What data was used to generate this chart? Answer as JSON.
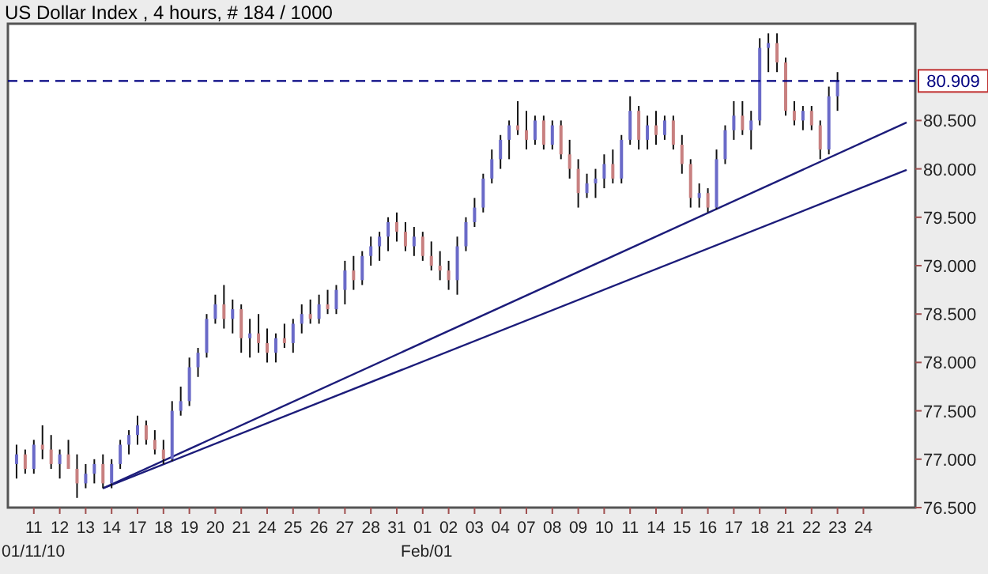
{
  "chart_data": {
    "type": "candlestick",
    "title": "US Dollar Index , 4 hours, # 184 / 1000",
    "categories": [
      null,
      null,
      "11",
      null,
      null,
      "12",
      null,
      null,
      "13",
      null,
      null,
      "14",
      null,
      null,
      "17",
      null,
      null,
      "18",
      null,
      null,
      "19",
      null,
      null,
      "20",
      null,
      null,
      "21",
      null,
      null,
      "24",
      null,
      null,
      "25",
      null,
      null,
      "26",
      null,
      null,
      "27",
      null,
      null,
      "28",
      null,
      null,
      "31",
      null,
      null,
      "01",
      null,
      null,
      "02",
      null,
      null,
      "03",
      null,
      null,
      "04",
      null,
      null,
      "07",
      null,
      null,
      "08",
      null,
      null,
      "09",
      null,
      null,
      "10",
      null,
      null,
      "11",
      null,
      null,
      "14",
      null,
      null,
      "15",
      null,
      null,
      "16",
      null,
      null,
      "17",
      null,
      null,
      "18",
      null,
      null,
      "21",
      null,
      null,
      "22",
      null,
      null,
      "23",
      null,
      null,
      "24",
      null,
      null,
      null,
      null,
      null
    ],
    "ohlc": [
      [
        76.95,
        77.15,
        76.8,
        77.05
      ],
      [
        77.05,
        77.1,
        76.85,
        76.9
      ],
      [
        76.9,
        77.2,
        76.85,
        77.15
      ],
      [
        77.15,
        77.35,
        77.0,
        77.1
      ],
      [
        77.1,
        77.25,
        76.9,
        76.95
      ],
      [
        76.95,
        77.1,
        76.8,
        77.05
      ],
      [
        77.05,
        77.2,
        76.9,
        76.9
      ],
      [
        76.9,
        77.05,
        76.6,
        76.75
      ],
      [
        76.75,
        76.95,
        76.7,
        76.85
      ],
      [
        76.85,
        77.0,
        76.75,
        76.95
      ],
      [
        76.95,
        77.05,
        76.7,
        76.75
      ],
      [
        76.75,
        77.0,
        76.7,
        76.95
      ],
      [
        76.95,
        77.2,
        76.9,
        77.15
      ],
      [
        77.15,
        77.3,
        77.05,
        77.25
      ],
      [
        77.25,
        77.45,
        77.15,
        77.35
      ],
      [
        77.35,
        77.4,
        77.15,
        77.2
      ],
      [
        77.2,
        77.3,
        77.05,
        77.1
      ],
      [
        77.1,
        77.2,
        76.95,
        77.0
      ],
      [
        77.0,
        77.6,
        76.98,
        77.5
      ],
      [
        77.5,
        77.75,
        77.45,
        77.6
      ],
      [
        77.6,
        78.05,
        77.55,
        77.95
      ],
      [
        77.95,
        78.15,
        77.85,
        78.1
      ],
      [
        78.1,
        78.5,
        78.05,
        78.45
      ],
      [
        78.45,
        78.7,
        78.4,
        78.6
      ],
      [
        78.6,
        78.8,
        78.35,
        78.45
      ],
      [
        78.45,
        78.65,
        78.3,
        78.55
      ],
      [
        78.55,
        78.6,
        78.1,
        78.25
      ],
      [
        78.25,
        78.45,
        78.05,
        78.3
      ],
      [
        78.3,
        78.5,
        78.1,
        78.2
      ],
      [
        78.2,
        78.35,
        78.0,
        78.1
      ],
      [
        78.1,
        78.3,
        78.0,
        78.25
      ],
      [
        78.25,
        78.4,
        78.15,
        78.2
      ],
      [
        78.2,
        78.45,
        78.1,
        78.4
      ],
      [
        78.4,
        78.6,
        78.3,
        78.5
      ],
      [
        78.5,
        78.65,
        78.4,
        78.45
      ],
      [
        78.45,
        78.7,
        78.4,
        78.6
      ],
      [
        78.6,
        78.75,
        78.5,
        78.55
      ],
      [
        78.55,
        78.8,
        78.5,
        78.75
      ],
      [
        78.75,
        79.05,
        78.6,
        78.95
      ],
      [
        78.95,
        79.1,
        78.75,
        78.85
      ],
      [
        78.85,
        79.15,
        78.8,
        79.1
      ],
      [
        79.1,
        79.3,
        79.0,
        79.2
      ],
      [
        79.2,
        79.35,
        79.05,
        79.3
      ],
      [
        79.3,
        79.5,
        79.15,
        79.45
      ],
      [
        79.45,
        79.55,
        79.25,
        79.35
      ],
      [
        79.35,
        79.45,
        79.15,
        79.2
      ],
      [
        79.2,
        79.4,
        79.1,
        79.3
      ],
      [
        79.3,
        79.35,
        79.05,
        79.1
      ],
      [
        79.1,
        79.25,
        78.95,
        79.0
      ],
      [
        79.0,
        79.15,
        78.85,
        78.95
      ],
      [
        78.95,
        79.05,
        78.75,
        78.85
      ],
      [
        78.85,
        79.3,
        78.7,
        79.2
      ],
      [
        79.2,
        79.5,
        79.15,
        79.45
      ],
      [
        79.45,
        79.7,
        79.4,
        79.6
      ],
      [
        79.6,
        79.95,
        79.55,
        79.9
      ],
      [
        79.9,
        80.2,
        79.85,
        80.1
      ],
      [
        80.1,
        80.35,
        80.0,
        80.3
      ],
      [
        80.3,
        80.5,
        80.1,
        80.45
      ],
      [
        80.45,
        80.7,
        80.35,
        80.4
      ],
      [
        80.4,
        80.6,
        80.2,
        80.3
      ],
      [
        80.3,
        80.55,
        80.25,
        80.5
      ],
      [
        80.5,
        80.55,
        80.2,
        80.25
      ],
      [
        80.25,
        80.5,
        80.2,
        80.45
      ],
      [
        80.45,
        80.5,
        80.1,
        80.15
      ],
      [
        80.15,
        80.3,
        79.9,
        80.0
      ],
      [
        80.0,
        80.1,
        79.6,
        79.75
      ],
      [
        79.75,
        79.95,
        79.7,
        79.85
      ],
      [
        79.85,
        80.0,
        79.7,
        79.9
      ],
      [
        79.9,
        80.15,
        79.8,
        80.05
      ],
      [
        80.05,
        80.2,
        79.85,
        79.9
      ],
      [
        79.9,
        80.35,
        79.85,
        80.3
      ],
      [
        80.3,
        80.75,
        80.25,
        80.6
      ],
      [
        80.6,
        80.65,
        80.2,
        80.3
      ],
      [
        80.3,
        80.55,
        80.2,
        80.45
      ],
      [
        80.45,
        80.6,
        80.25,
        80.35
      ],
      [
        80.35,
        80.55,
        80.3,
        80.5
      ],
      [
        80.5,
        80.55,
        80.2,
        80.25
      ],
      [
        80.25,
        80.35,
        79.95,
        80.05
      ],
      [
        80.05,
        80.1,
        79.6,
        79.7
      ],
      [
        79.7,
        79.85,
        79.6,
        79.75
      ],
      [
        79.75,
        79.8,
        79.55,
        79.6
      ],
      [
        79.6,
        80.2,
        79.58,
        80.1
      ],
      [
        80.1,
        80.45,
        80.05,
        80.4
      ],
      [
        80.4,
        80.7,
        80.3,
        80.55
      ],
      [
        80.55,
        80.7,
        80.35,
        80.4
      ],
      [
        80.4,
        80.6,
        80.2,
        80.5
      ],
      [
        80.5,
        81.35,
        80.45,
        81.25
      ],
      [
        81.25,
        81.4,
        81.0,
        81.3
      ],
      [
        81.3,
        81.4,
        81.0,
        81.1
      ],
      [
        81.1,
        81.15,
        80.55,
        80.6
      ],
      [
        80.6,
        80.7,
        80.45,
        80.5
      ],
      [
        80.5,
        80.65,
        80.4,
        80.6
      ],
      [
        80.6,
        80.65,
        80.4,
        80.45
      ],
      [
        80.45,
        80.5,
        80.1,
        80.2
      ],
      [
        80.2,
        80.85,
        80.15,
        80.75
      ],
      [
        80.75,
        81.0,
        80.6,
        80.9
      ],
      null,
      null,
      null,
      null,
      null,
      null,
      null,
      null
    ],
    "series": [
      {
        "type": "line",
        "color": "#1c1c7a",
        "values": [
          null,
          null,
          null,
          null,
          null,
          null,
          null,
          null,
          null,
          null,
          76.7,
          null,
          null,
          null,
          null,
          null,
          null,
          null,
          null,
          null,
          null,
          null,
          null,
          null,
          null,
          null,
          null,
          null,
          null,
          null,
          null,
          null,
          null,
          null,
          null,
          null,
          null,
          null,
          null,
          null,
          null,
          null,
          null,
          null,
          null,
          null,
          null,
          null,
          null,
          null,
          null,
          null,
          null,
          null,
          null,
          null,
          null,
          null,
          null,
          null,
          null,
          null,
          null,
          null,
          null,
          null,
          null,
          null,
          null,
          null,
          null,
          null,
          null,
          null,
          null,
          null,
          null,
          null,
          null,
          null,
          null,
          null,
          null,
          null,
          null,
          null,
          null,
          null,
          null,
          null,
          null,
          null,
          null,
          null,
          null,
          null,
          null,
          null,
          null,
          null,
          null,
          null,
          null,
          80.48
        ]
      },
      {
        "type": "line",
        "color": "#1c1c7a",
        "values": [
          null,
          null,
          null,
          null,
          null,
          null,
          null,
          null,
          null,
          null,
          76.7,
          null,
          null,
          null,
          null,
          null,
          null,
          null,
          null,
          null,
          null,
          null,
          null,
          null,
          null,
          null,
          null,
          null,
          null,
          null,
          null,
          null,
          null,
          null,
          null,
          null,
          null,
          null,
          null,
          null,
          null,
          null,
          null,
          null,
          null,
          null,
          null,
          null,
          null,
          null,
          null,
          null,
          null,
          null,
          null,
          null,
          null,
          null,
          null,
          null,
          null,
          null,
          null,
          null,
          null,
          null,
          null,
          null,
          null,
          null,
          null,
          null,
          null,
          null,
          null,
          null,
          null,
          null,
          null,
          null,
          null,
          null,
          null,
          null,
          null,
          null,
          null,
          null,
          null,
          null,
          null,
          null,
          null,
          null,
          null,
          null,
          null,
          null,
          null,
          null,
          null,
          null,
          null,
          79.99
        ]
      }
    ],
    "ylim": [
      76.5,
      81.5
    ],
    "yticks": [
      {
        "value": 76.5,
        "label": "76.500"
      },
      {
        "value": 77,
        "label": "77.000"
      },
      {
        "value": 77.5,
        "label": "77.500"
      },
      {
        "value": 78,
        "label": "78.000"
      },
      {
        "value": 78.5,
        "label": "78.500"
      },
      {
        "value": 79,
        "label": "79.000"
      },
      {
        "value": 79.5,
        "label": "79.500"
      },
      {
        "value": 80,
        "label": "80.000"
      },
      {
        "value": 80.5,
        "label": "80.500"
      }
    ],
    "ref_lines": [
      {
        "axis": "y",
        "value": 80.909,
        "label": "80.909",
        "color": "#000080",
        "line_style": "dashed"
      }
    ],
    "annotations": [
      "01/11/10",
      "Feb/01"
    ],
    "grid": false
  }
}
